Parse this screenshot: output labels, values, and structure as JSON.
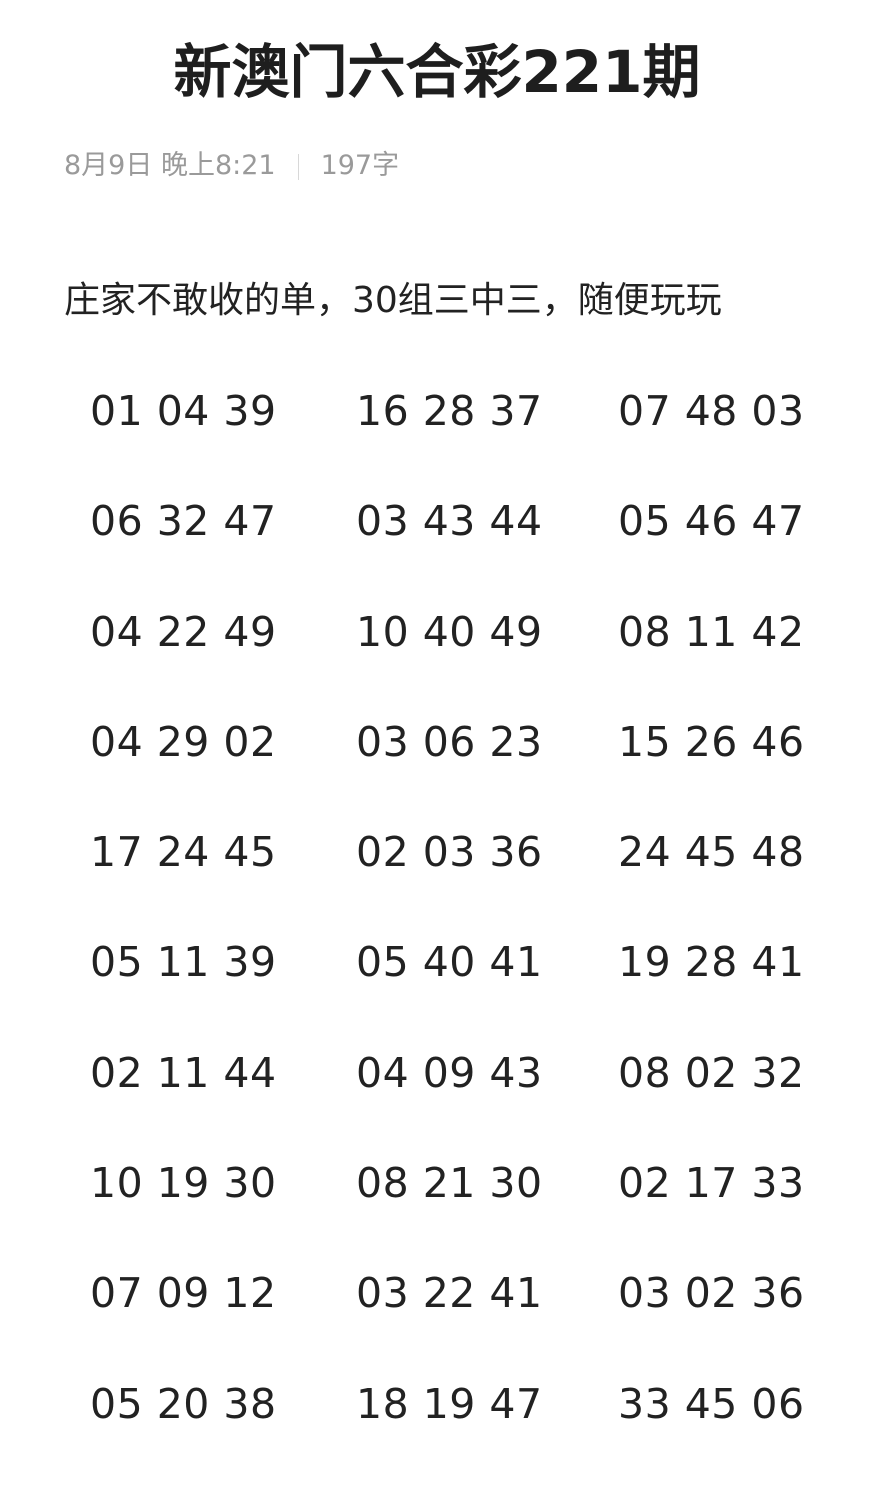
{
  "article": {
    "title": "新澳门六合彩221期",
    "date": "8月9日 晚上8:21",
    "word_count": "197字",
    "intro": "庄家不敢收的单，30组三中三，随便玩玩",
    "rows": [
      [
        "01 04 39",
        "16 28 37",
        "07 48 03"
      ],
      [
        "06 32 47",
        "03 43 44",
        "05 46 47"
      ],
      [
        "04 22 49",
        "10 40 49",
        "08 11 42"
      ],
      [
        "04 29 02",
        "03 06 23",
        "15 26 46"
      ],
      [
        "17 24 45",
        "02 03 36",
        "24 45 48"
      ],
      [
        "05 11 39",
        "05 40 41",
        "19 28 41"
      ],
      [
        "02 11 44",
        "04 09 43",
        "08 02 32"
      ],
      [
        "10 19 30",
        "08 21 30",
        "02 17 33"
      ],
      [
        "07 09 12",
        "03 22 41",
        "03 02 36"
      ],
      [
        "05 20 38",
        "18 19 47",
        "33 45 06"
      ]
    ]
  }
}
